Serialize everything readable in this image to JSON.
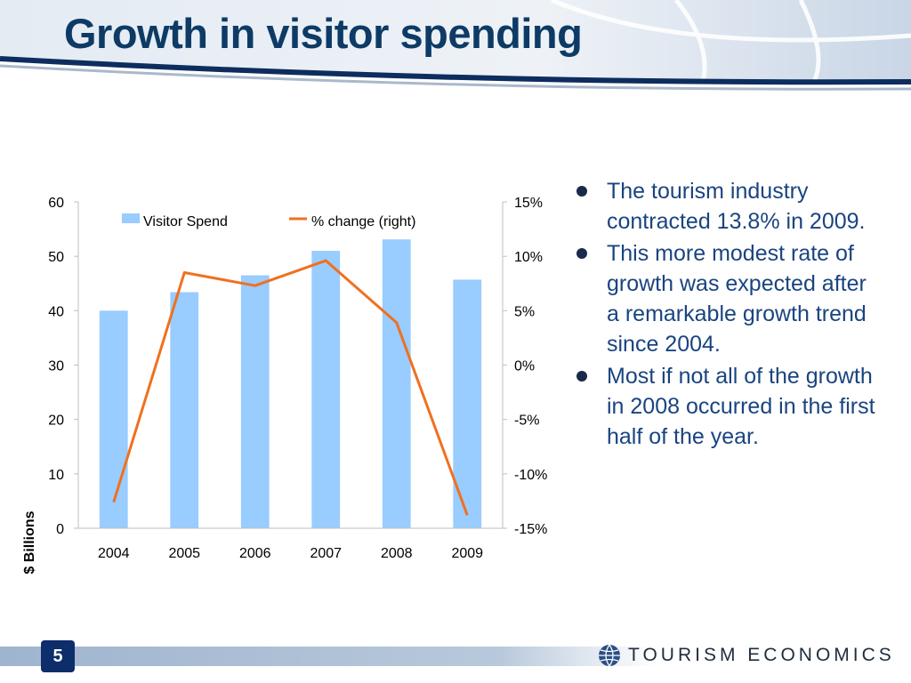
{
  "slide": {
    "title": "Growth in visitor spending",
    "page_number": "5",
    "logo_text": "TOURISM ECONOMICS",
    "bullets": [
      "The tourism industry contracted 13.8% in 2009.",
      "This more modest rate of growth was expected after a remarkable growth trend since 2004.",
      "Most if not all of the growth in 2008 occurred in the first half of the year."
    ]
  },
  "colors": {
    "title": "#0d3b66",
    "bar": "#99ccff",
    "line": "#f07020",
    "bullet_text": "#1a4480"
  },
  "chart_data": {
    "type": "bar",
    "categories": [
      "2004",
      "2005",
      "2006",
      "2007",
      "2008",
      "2009"
    ],
    "series": [
      {
        "name": "Visitor Spend",
        "type": "bar",
        "axis": "left",
        "values": [
          40.0,
          43.4,
          46.5,
          51.0,
          53.1,
          45.7
        ]
      },
      {
        "name": "% change (right)",
        "type": "line",
        "axis": "right",
        "values": [
          -12.6,
          8.5,
          7.3,
          9.6,
          3.9,
          -13.8
        ]
      }
    ],
    "ylabel": "$ Billions",
    "ylim": [
      0,
      60
    ],
    "yticks": [
      "0",
      "10",
      "20",
      "30",
      "40",
      "50",
      "60"
    ],
    "y2lim": [
      -15,
      15
    ],
    "y2ticks": [
      "-15%",
      "-10%",
      "-5%",
      "0%",
      "5%",
      "10%",
      "15%"
    ],
    "legend": "top",
    "grid": false
  }
}
